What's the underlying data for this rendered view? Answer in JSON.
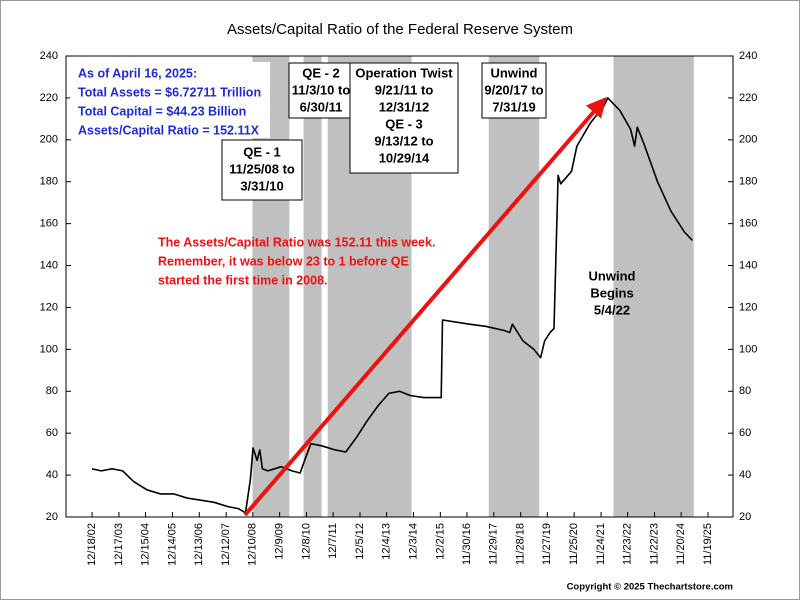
{
  "chart_data": {
    "type": "line",
    "title": "Assets/Capital Ratio of the Federal Reserve System",
    "xlim": [
      2001.99,
      2026.81
    ],
    "ylim": [
      20,
      240
    ],
    "yticks": [
      20,
      40,
      60,
      80,
      100,
      120,
      140,
      160,
      180,
      200,
      220,
      240
    ],
    "xticks": [
      {
        "value": 2002.96,
        "label": "12/18/02"
      },
      {
        "value": 2003.96,
        "label": "12/17/03"
      },
      {
        "value": 2004.95,
        "label": "12/15/04"
      },
      {
        "value": 2005.95,
        "label": "12/14/05"
      },
      {
        "value": 2006.95,
        "label": "12/13/06"
      },
      {
        "value": 2007.95,
        "label": "12/12/07"
      },
      {
        "value": 2008.94,
        "label": "12/10/08"
      },
      {
        "value": 2009.94,
        "label": "12/9/09"
      },
      {
        "value": 2010.94,
        "label": "12/8/10"
      },
      {
        "value": 2011.93,
        "label": "12/7/11"
      },
      {
        "value": 2012.93,
        "label": "12/5/12"
      },
      {
        "value": 2013.92,
        "label": "12/4/13"
      },
      {
        "value": 2014.92,
        "label": "12/3/14"
      },
      {
        "value": 2015.92,
        "label": "12/2/15"
      },
      {
        "value": 2016.91,
        "label": "11/30/16"
      },
      {
        "value": 2017.91,
        "label": "11/29/17"
      },
      {
        "value": 2018.91,
        "label": "11/28/18"
      },
      {
        "value": 2019.9,
        "label": "11/27/19"
      },
      {
        "value": 2020.9,
        "label": "11/25/20"
      },
      {
        "value": 2021.9,
        "label": "11/24/21"
      },
      {
        "value": 2022.89,
        "label": "11/23/22"
      },
      {
        "value": 2023.89,
        "label": "11/22/23"
      },
      {
        "value": 2024.88,
        "label": "11/20/24"
      },
      {
        "value": 2025.88,
        "label": "11/19/25"
      }
    ],
    "grid": false,
    "series": [
      {
        "color": "#000000",
        "x": [
          2002.96,
          2003.3,
          2003.7,
          2004.1,
          2004.5,
          2005.0,
          2005.5,
          2006.0,
          2006.5,
          2007.0,
          2007.5,
          2008.0,
          2008.4,
          2008.67,
          2008.85,
          2008.95,
          2009.1,
          2009.2,
          2009.3,
          2009.5,
          2010.0,
          2010.4,
          2010.7,
          2010.9,
          2011.1,
          2011.5,
          2012.0,
          2012.4,
          2012.8,
          2013.2,
          2013.6,
          2014.0,
          2014.4,
          2014.8,
          2015.3,
          2015.95,
          2016.0,
          2016.5,
          2017.0,
          2017.6,
          2018.3,
          2018.5,
          2018.6,
          2019.0,
          2019.4,
          2019.65,
          2019.8,
          2020.0,
          2020.15,
          2020.3,
          2020.4,
          2020.8,
          2021.0,
          2021.5,
          2022.0,
          2022.15,
          2022.6,
          2023.0,
          2023.15,
          2023.25,
          2023.5,
          2024.0,
          2024.5,
          2025.0,
          2025.3
        ],
        "values": [
          43,
          42,
          43,
          42,
          37,
          33,
          31,
          31,
          29,
          28,
          27,
          25,
          24,
          22,
          38,
          53,
          47,
          52,
          43,
          42,
          44,
          42,
          41,
          48,
          55,
          54,
          52,
          51,
          58,
          66,
          73,
          79,
          80,
          78,
          77,
          77,
          114,
          113,
          112,
          111,
          109,
          108,
          112,
          104,
          100,
          96,
          104,
          108,
          110,
          183,
          179,
          185,
          197,
          208,
          216,
          220,
          214,
          205,
          197,
          206,
          198,
          180,
          166,
          156,
          152
        ]
      }
    ],
    "shaded_periods": [
      {
        "start": 2008.93,
        "end": 2010.3,
        "label": [
          "QE - 1",
          "11/25/08 to",
          "3/31/10"
        ]
      },
      {
        "start": 2010.83,
        "end": 2011.5,
        "label": [
          "QE - 2",
          "11/3/10 to",
          "6/30/11"
        ]
      },
      {
        "start": 2011.73,
        "end": 2014.85,
        "label": [
          "Operation Twist",
          "9/21/11 to",
          "12/31/12",
          "QE - 3",
          "9/13/12 to",
          "10/29/14"
        ]
      },
      {
        "start": 2017.72,
        "end": 2019.6,
        "label": [
          "Unwind",
          "9/20/17 to",
          "7/31/19"
        ]
      },
      {
        "start": 2022.36,
        "end": 2025.35,
        "label": [
          "Unwind",
          "Begins",
          "5/4/22"
        ]
      }
    ],
    "info_lines": [
      "As of April 16, 2025:",
      "Total Assets = $6.72711 Trillion",
      "Total Capital  = $44.23 Billion",
      "Assets/Capital Ratio = 152.11X"
    ],
    "note_lines": [
      "The Assets/Capital Ratio was 152.11 this week.",
      "Remember, it was below 23 to 1 before QE",
      "started the first time in 2008."
    ],
    "copyright": "Copyright © 2025 Thechartstore.com"
  }
}
